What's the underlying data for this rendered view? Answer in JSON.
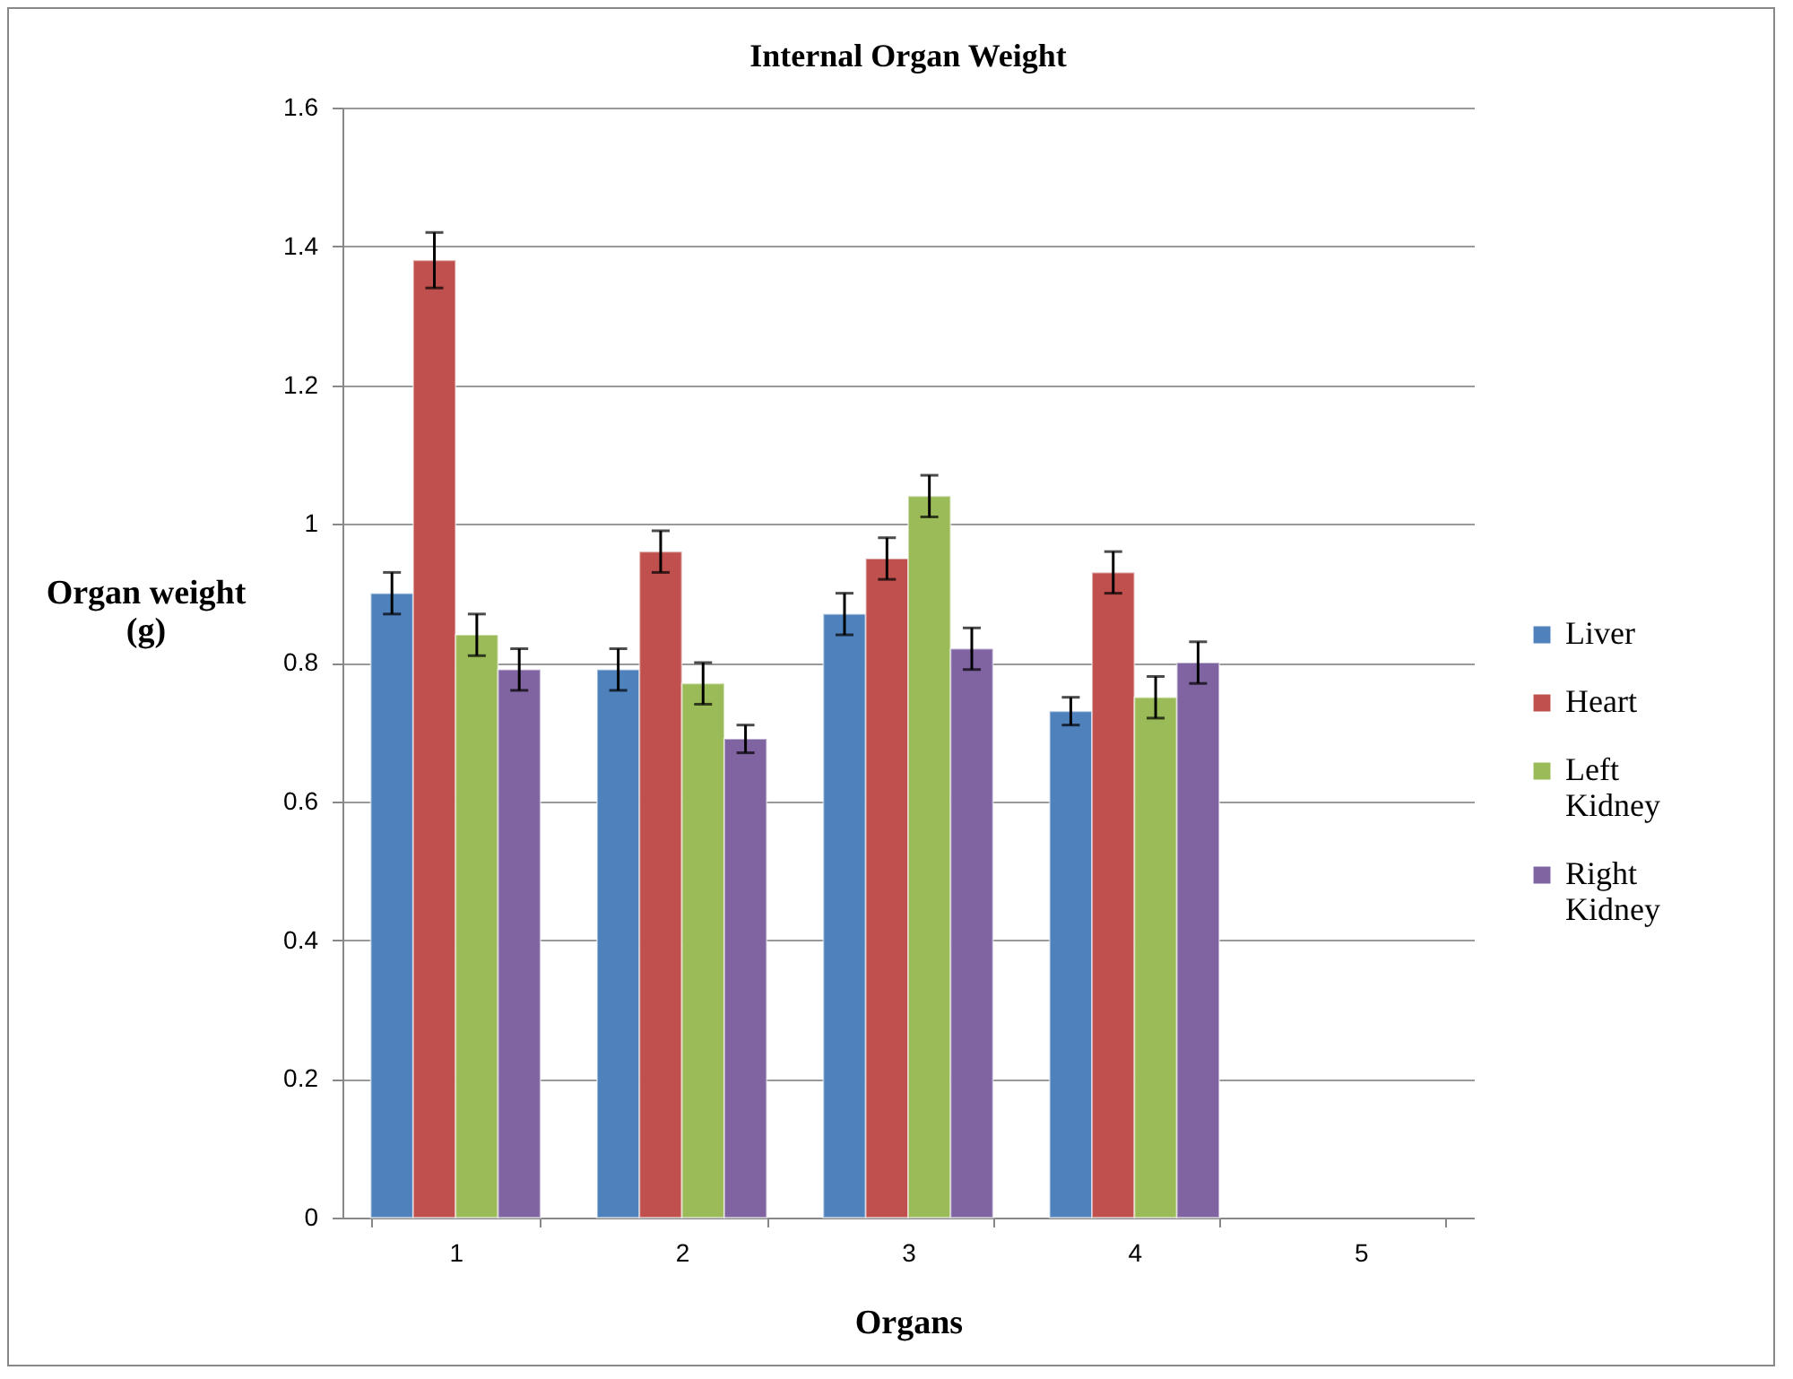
{
  "chart_data": {
    "type": "bar",
    "title": "Internal Organ Weight",
    "xlabel": "Organs",
    "ylabel": "Organ weight (g)",
    "categories": [
      "1",
      "2",
      "3",
      "4",
      "5"
    ],
    "series": [
      {
        "name": "Liver",
        "color": "#4f81bd",
        "values": [
          0.9,
          0.79,
          0.87,
          0.73,
          null
        ],
        "errors": [
          0.03,
          0.03,
          0.03,
          0.02,
          null
        ]
      },
      {
        "name": "Heart",
        "color": "#c0504d",
        "values": [
          1.38,
          0.96,
          0.95,
          0.93,
          null
        ],
        "errors": [
          0.04,
          0.03,
          0.03,
          0.03,
          null
        ]
      },
      {
        "name": "Left Kidney",
        "color": "#9bbb59",
        "values": [
          0.84,
          0.77,
          1.04,
          0.75,
          null
        ],
        "errors": [
          0.03,
          0.03,
          0.03,
          0.03,
          null
        ]
      },
      {
        "name": "Right Kidney",
        "color": "#8064a2",
        "values": [
          0.79,
          0.69,
          0.82,
          0.8,
          null
        ],
        "errors": [
          0.03,
          0.02,
          0.03,
          0.03,
          null
        ]
      }
    ],
    "ylim": [
      0,
      1.6
    ],
    "yticks": [
      0,
      0.2,
      0.4,
      0.6,
      0.8,
      1,
      1.2,
      1.4,
      1.6
    ],
    "grid": "y",
    "legend": "right"
  }
}
